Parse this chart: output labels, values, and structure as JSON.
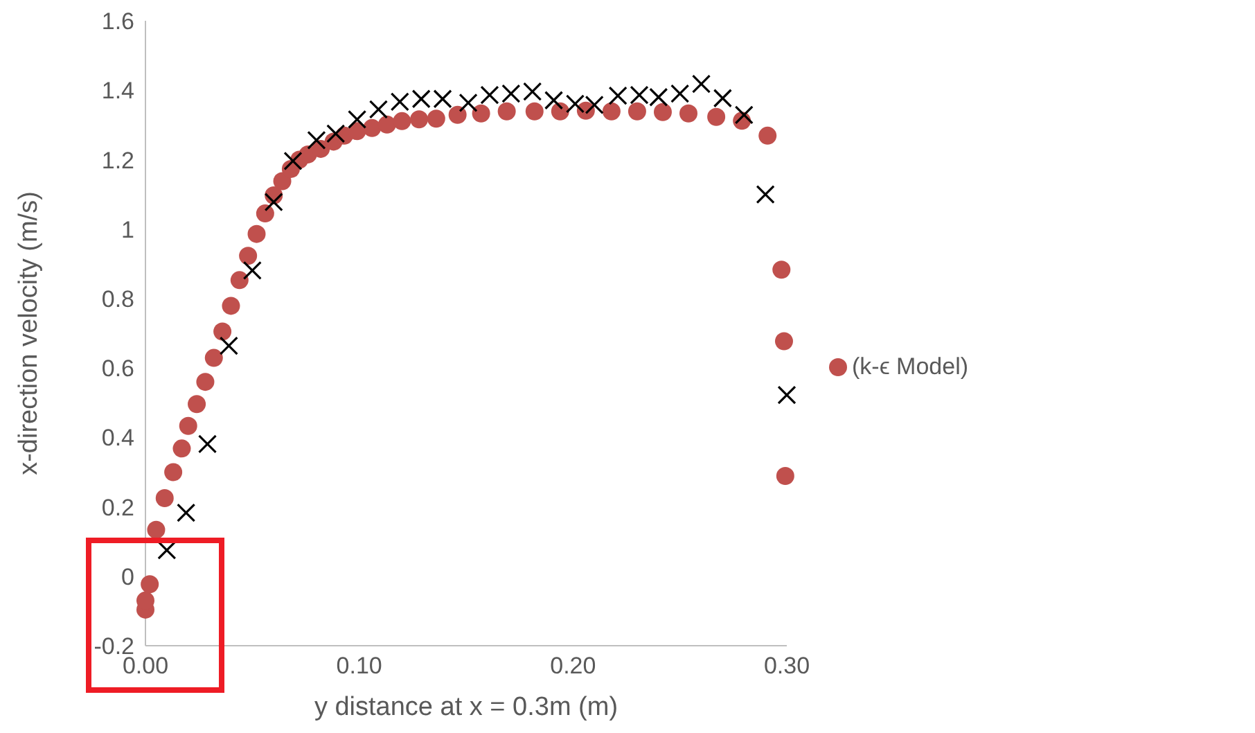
{
  "chart_data": {
    "type": "scatter",
    "xlabel": "y distance at x = 0.3m (m)",
    "ylabel": "x-direction velocity (m/s)",
    "xlim": [
      0,
      0.3
    ],
    "xticks": [
      {
        "value": 0,
        "label": "0.00"
      },
      {
        "value": 0.1,
        "label": "0.10"
      },
      {
        "value": 0.2,
        "label": "0.20"
      },
      {
        "value": 0.3,
        "label": "0.30"
      }
    ],
    "ylim": [
      -0.2,
      1.6
    ],
    "yticks": [
      -0.2,
      0,
      0.2,
      0.4,
      0.6,
      0.8,
      1,
      1.2,
      1.4,
      1.6
    ],
    "grid": false,
    "legend": "right",
    "series": [
      {
        "name": "(k-ϵ Model)",
        "color": "#c0504d",
        "marker": "circle",
        "x": [
          0,
          0,
          0.002,
          0.005,
          0.009,
          0.013,
          0.017,
          0.02,
          0.024,
          0.028,
          0.032,
          0.036,
          0.04,
          0.044,
          0.048,
          0.052,
          0.056,
          0.06,
          0.064,
          0.068,
          0.072,
          0.076,
          0.082,
          0.088,
          0.093,
          0.099,
          0.106,
          0.113,
          0.12,
          0.128,
          0.136,
          0.146,
          0.157,
          0.169,
          0.182,
          0.194,
          0.206,
          0.218,
          0.23,
          0.242,
          0.254,
          0.267,
          0.279,
          0.291,
          0.2975,
          0.2987,
          0.2993
        ],
        "values": [
          -0.096,
          -0.07,
          -0.023,
          0.134,
          0.225,
          0.3,
          0.368,
          0.433,
          0.496,
          0.56,
          0.629,
          0.705,
          0.779,
          0.853,
          0.923,
          0.986,
          1.045,
          1.097,
          1.138,
          1.173,
          1.2,
          1.215,
          1.231,
          1.252,
          1.269,
          1.282,
          1.291,
          1.301,
          1.311,
          1.316,
          1.318,
          1.329,
          1.333,
          1.339,
          1.339,
          1.339,
          1.341,
          1.339,
          1.339,
          1.337,
          1.333,
          1.323,
          1.312,
          1.269,
          0.883,
          0.677,
          0.289
        ]
      },
      {
        "color": "#000000",
        "marker": "cross",
        "x": [
          0.01,
          0.019,
          0.029,
          0.039,
          0.05,
          0.06,
          0.069,
          0.08,
          0.089,
          0.099,
          0.109,
          0.119,
          0.129,
          0.139,
          0.151,
          0.161,
          0.171,
          0.181,
          0.191,
          0.201,
          0.21,
          0.221,
          0.231,
          0.24,
          0.25,
          0.26,
          0.27,
          0.28,
          0.29,
          0.3
        ],
        "values": [
          0.075,
          0.183,
          0.381,
          0.664,
          0.881,
          1.078,
          1.196,
          1.256,
          1.275,
          1.316,
          1.345,
          1.367,
          1.375,
          1.375,
          1.364,
          1.386,
          1.39,
          1.396,
          1.371,
          1.361,
          1.358,
          1.384,
          1.386,
          1.38,
          1.39,
          1.418,
          1.377,
          1.329,
          1.1,
          0.522
        ]
      }
    ]
  }
}
